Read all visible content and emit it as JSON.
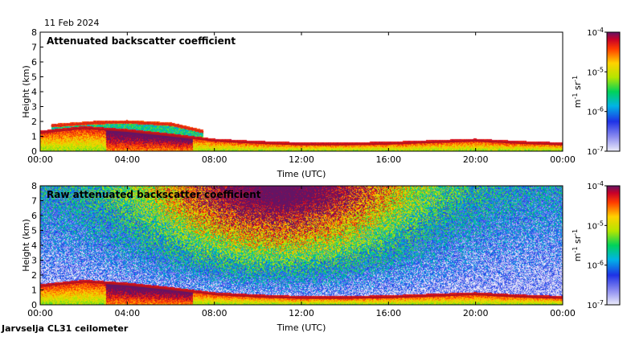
{
  "header": {
    "date": "11 Feb 2024"
  },
  "footer": {
    "instrument": "Jarvselja CL31 ceilometer"
  },
  "chart_data": [
    {
      "type": "heatmap",
      "title": "Attenuated backscatter coefficient",
      "xlabel": "Time (UTC)",
      "ylabel": "Height (km)",
      "x_ticks": [
        "00:00",
        "04:00",
        "08:00",
        "12:00",
        "16:00",
        "20:00",
        "00:00"
      ],
      "y_ticks": [
        "0",
        "1",
        "2",
        "3",
        "4",
        "5",
        "6",
        "7",
        "8"
      ],
      "xlim_hours": [
        0,
        24
      ],
      "ylim_km": [
        0,
        8
      ],
      "colorbar": {
        "label_base": "m",
        "label_exp1": "-1",
        "label_mid": " sr",
        "label_exp2": "-1",
        "ticks": [
          {
            "base": "10",
            "exp": "-4"
          },
          {
            "base": "10",
            "exp": "-5"
          },
          {
            "base": "10",
            "exp": "-6"
          },
          {
            "base": "10",
            "exp": "-7"
          }
        ],
        "range_log10": [
          -7,
          -4
        ]
      },
      "layers": [
        {
          "name": "boundary-layer-top",
          "heights_km": [
            [
              0,
              1.25
            ],
            [
              2,
              1.55
            ],
            [
              4,
              1.35
            ],
            [
              6,
              1.05
            ],
            [
              8,
              0.7
            ],
            [
              10,
              0.55
            ],
            [
              12,
              0.45
            ],
            [
              14,
              0.45
            ],
            [
              16,
              0.5
            ],
            [
              18,
              0.6
            ],
            [
              20,
              0.7
            ],
            [
              22,
              0.55
            ],
            [
              24,
              0.45
            ]
          ]
        },
        {
          "name": "elevated-aerosol-layer",
          "heights_km": [
            [
              0.5,
              1.7
            ],
            [
              2.5,
              1.9
            ],
            [
              4,
              1.95
            ],
            [
              6,
              1.8
            ],
            [
              7.5,
              1.3
            ]
          ]
        }
      ]
    },
    {
      "type": "heatmap",
      "title": "Raw attenuated backscatter coefficient",
      "xlabel": "Time (UTC)",
      "ylabel": "Height (km)",
      "x_ticks": [
        "00:00",
        "04:00",
        "08:00",
        "12:00",
        "16:00",
        "20:00",
        "00:00"
      ],
      "y_ticks": [
        "0",
        "1",
        "2",
        "3",
        "4",
        "5",
        "6",
        "7",
        "8"
      ],
      "xlim_hours": [
        0,
        24
      ],
      "ylim_km": [
        0,
        8
      ],
      "colorbar": {
        "label_base": "m",
        "label_exp1": "-1",
        "label_mid": " sr",
        "label_exp2": "-1",
        "ticks": [
          {
            "base": "10",
            "exp": "-4"
          },
          {
            "base": "10",
            "exp": "-5"
          },
          {
            "base": "10",
            "exp": "-6"
          },
          {
            "base": "10",
            "exp": "-7"
          }
        ],
        "range_log10": [
          -7,
          -4
        ]
      },
      "layers": [
        {
          "name": "boundary-layer-top",
          "heights_km": [
            [
              0,
              1.25
            ],
            [
              2,
              1.55
            ],
            [
              4,
              1.35
            ],
            [
              6,
              1.05
            ],
            [
              8,
              0.7
            ],
            [
              10,
              0.55
            ],
            [
              12,
              0.45
            ],
            [
              14,
              0.45
            ],
            [
              16,
              0.5
            ],
            [
              18,
              0.6
            ],
            [
              20,
              0.7
            ],
            [
              22,
              0.55
            ],
            [
              24,
              0.45
            ]
          ]
        },
        {
          "name": "noise-maximum",
          "peak_hour": 11,
          "peak_height_km": 7.0
        }
      ]
    }
  ]
}
